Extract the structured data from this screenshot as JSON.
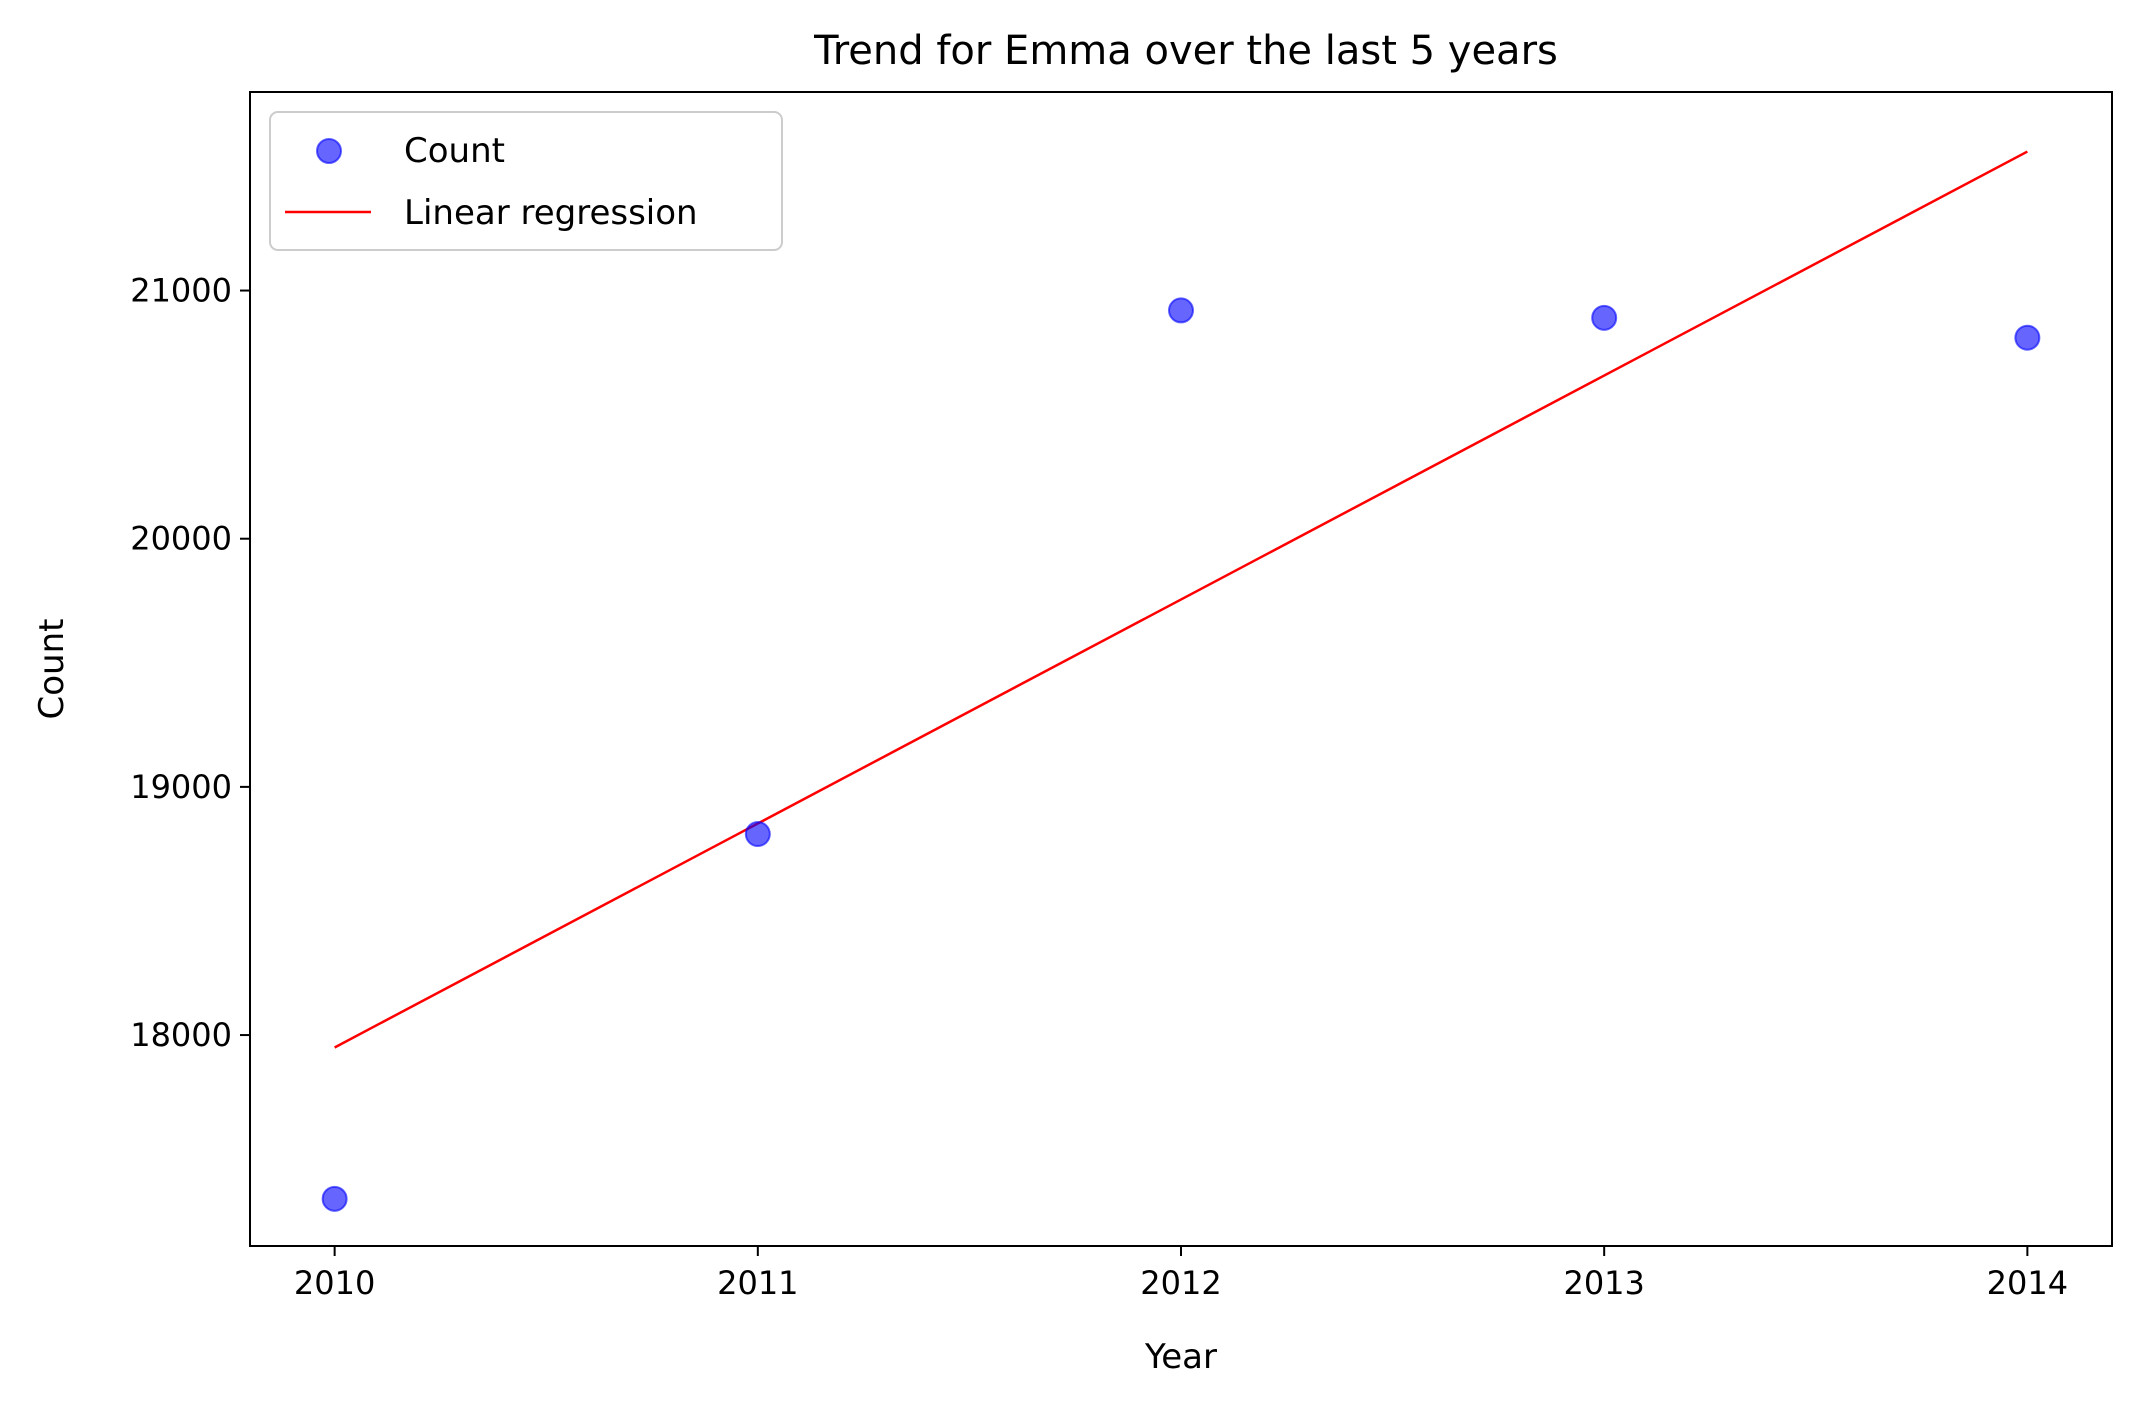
{
  "chart_data": {
    "type": "scatter",
    "title": "Trend for Emma over the last 5 years",
    "xlabel": "Year",
    "ylabel": "Count",
    "x": [
      2010,
      2011,
      2012,
      2013,
      2014
    ],
    "x_tick_labels": [
      "2010",
      "2011",
      "2012",
      "2013",
      "2014"
    ],
    "y_ticks": [
      18000,
      19000,
      20000,
      21000
    ],
    "y_tick_labels": [
      "18000",
      "19000",
      "20000",
      "21000"
    ],
    "xlim": [
      2009.8,
      2014.2
    ],
    "ylim": [
      17150,
      21800
    ],
    "grid": false,
    "legend_position": "top-left",
    "series": [
      {
        "name": "Count",
        "kind": "scatter",
        "color": "#0000ff",
        "x": [
          2010,
          2011,
          2012,
          2013,
          2014
        ],
        "values": [
          17340,
          18810,
          20920,
          20890,
          20810
        ]
      },
      {
        "name": "Linear regression",
        "kind": "line",
        "color": "#ff0000",
        "x": [
          2010,
          2014
        ],
        "values": [
          17950,
          21560
        ]
      }
    ]
  }
}
